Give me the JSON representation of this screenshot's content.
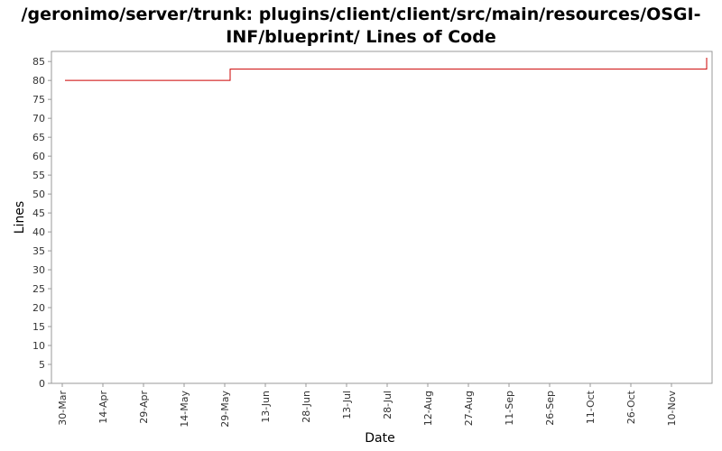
{
  "chart_data": {
    "type": "line",
    "title": "/geronimo/server/trunk: plugins/client/client/src/main/resources/OSGI-INF/blueprint/ Lines of Code",
    "xlabel": "Date",
    "ylabel": "Lines",
    "ylim": [
      0,
      86
    ],
    "yticks": [
      0,
      5,
      10,
      15,
      20,
      25,
      30,
      35,
      40,
      45,
      50,
      55,
      60,
      65,
      70,
      75,
      80,
      85
    ],
    "xlim": [
      "2011-03-26",
      "2011-11-25"
    ],
    "xticks": [
      {
        "date": "2011-03-30",
        "label": "30-Mar"
      },
      {
        "date": "2011-04-14",
        "label": "14-Apr"
      },
      {
        "date": "2011-04-29",
        "label": "29-Apr"
      },
      {
        "date": "2011-05-14",
        "label": "14-May"
      },
      {
        "date": "2011-05-29",
        "label": "29-May"
      },
      {
        "date": "2011-06-13",
        "label": "13-Jun"
      },
      {
        "date": "2011-06-28",
        "label": "28-Jun"
      },
      {
        "date": "2011-07-13",
        "label": "13-Jul"
      },
      {
        "date": "2011-07-28",
        "label": "28-Jul"
      },
      {
        "date": "2011-08-12",
        "label": "12-Aug"
      },
      {
        "date": "2011-08-27",
        "label": "27-Aug"
      },
      {
        "date": "2011-09-11",
        "label": "11-Sep"
      },
      {
        "date": "2011-09-26",
        "label": "26-Sep"
      },
      {
        "date": "2011-10-11",
        "label": "11-Oct"
      },
      {
        "date": "2011-10-26",
        "label": "26-Oct"
      },
      {
        "date": "2011-11-10",
        "label": "10-Nov"
      }
    ],
    "series": [
      {
        "color": "#cc0000",
        "step": true,
        "points": [
          {
            "x": "2011-03-31",
            "y": 80
          },
          {
            "x": "2011-05-31",
            "y": 83
          },
          {
            "x": "2011-11-23",
            "y": 86
          }
        ]
      }
    ],
    "grid": false,
    "legend": "none"
  }
}
